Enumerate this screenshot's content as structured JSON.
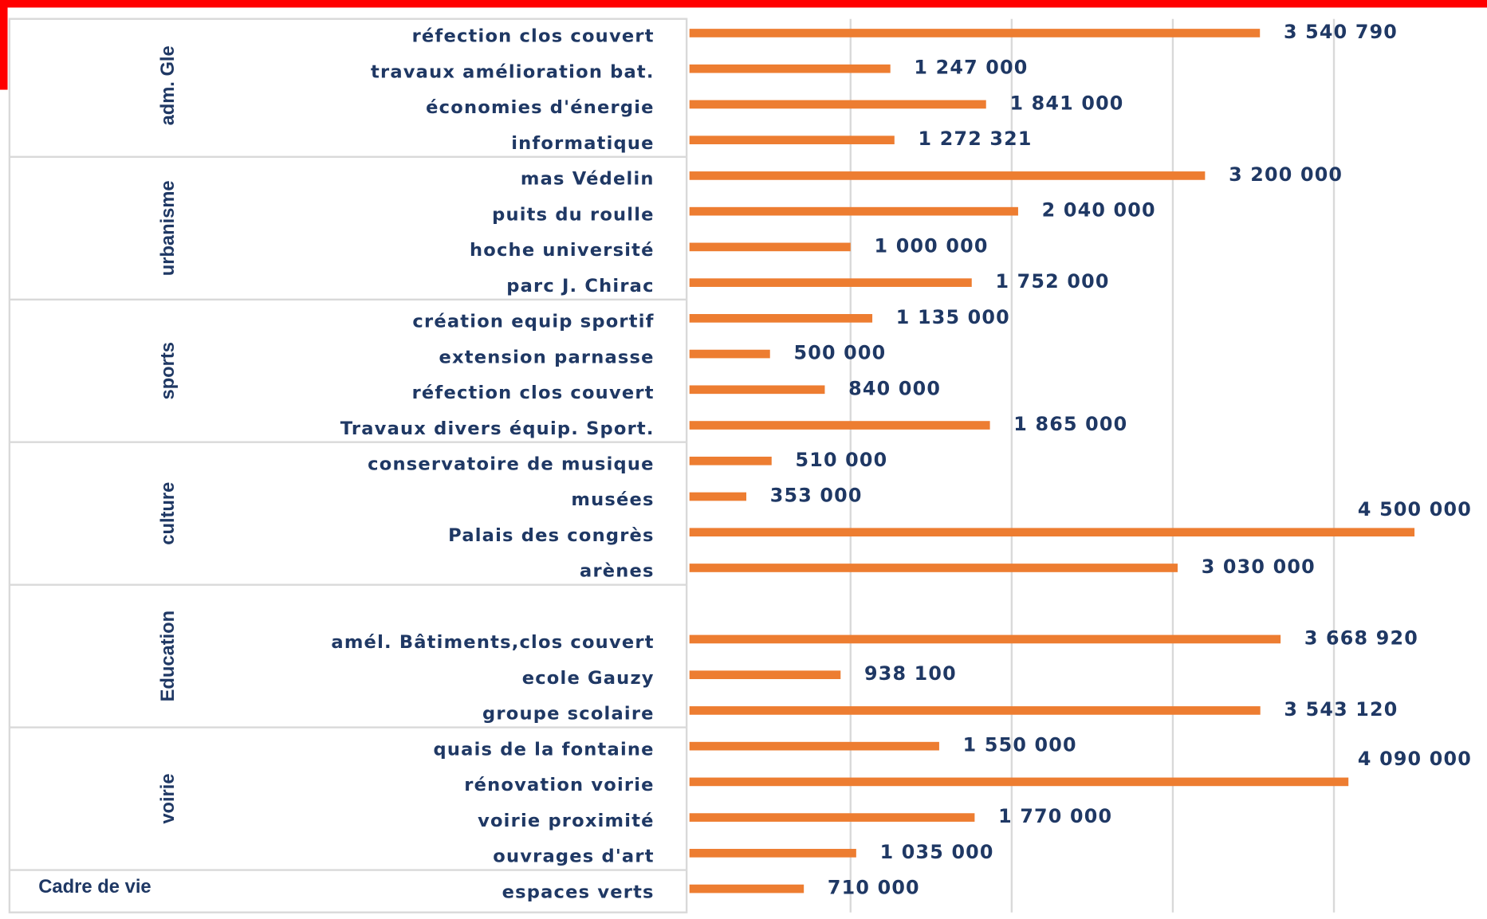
{
  "chart_data": {
    "type": "bar",
    "orientation": "horizontal",
    "color": "#ed7d31",
    "xlim": [
      0,
      4950000
    ],
    "xticks": [
      1000000,
      2000000,
      3000000,
      4000000
    ],
    "grid": true,
    "groups": [
      {
        "name": "adm. Gle",
        "start": 0,
        "count": 4
      },
      {
        "name": "urbanisme",
        "start": 4,
        "count": 4
      },
      {
        "name": "sports",
        "start": 8,
        "count": 4
      },
      {
        "name": "culture",
        "start": 12,
        "count": 4
      },
      {
        "name": "Education",
        "start": 16,
        "count": 4
      },
      {
        "name": "voirie",
        "start": 20,
        "count": 4
      },
      {
        "name": "Cadre de vie",
        "start": 24,
        "count": 1
      }
    ],
    "categories": [
      "réfection clos couvert",
      "travaux amélioration bat.",
      "économies d'énergie",
      "informatique",
      "mas Védelin",
      "puits du roulle",
      "hoche université",
      "parc J. Chirac",
      "création equip sportif",
      "extension parnasse",
      "réfection clos couvert",
      "Travaux divers équip. Sport.",
      "conservatoire de musique",
      "musées",
      "Palais des congrès",
      "arènes",
      null,
      "amél. Bâtiments,clos couvert",
      "ecole Gauzy",
      "groupe scolaire",
      "quais de la fontaine",
      "rénovation voirie",
      "voirie proximité",
      "ouvrages d'art",
      "espaces verts"
    ],
    "values": [
      3540790,
      1247000,
      1841000,
      1272321,
      3200000,
      2040000,
      1000000,
      1752000,
      1135000,
      500000,
      840000,
      1865000,
      510000,
      353000,
      4500000,
      3030000,
      null,
      3668920,
      938100,
      3543120,
      1550000,
      4090000,
      1770000,
      1035000,
      710000
    ],
    "value_labels": [
      "3 540 790",
      "1 247 000",
      "1 841 000",
      "1 272 321",
      "3 200 000",
      "2 040 000",
      "1 000 000",
      "1 752 000",
      "1 135 000",
      "500 000",
      "840 000",
      "1 865 000",
      "510 000",
      "353 000",
      "4 500 000",
      "3 030 000",
      null,
      "3 668 920",
      "938 100",
      "3 543 120",
      "1 550 000",
      "4 090 000",
      "1 770 000",
      "1 035 000",
      "710 000"
    ]
  }
}
